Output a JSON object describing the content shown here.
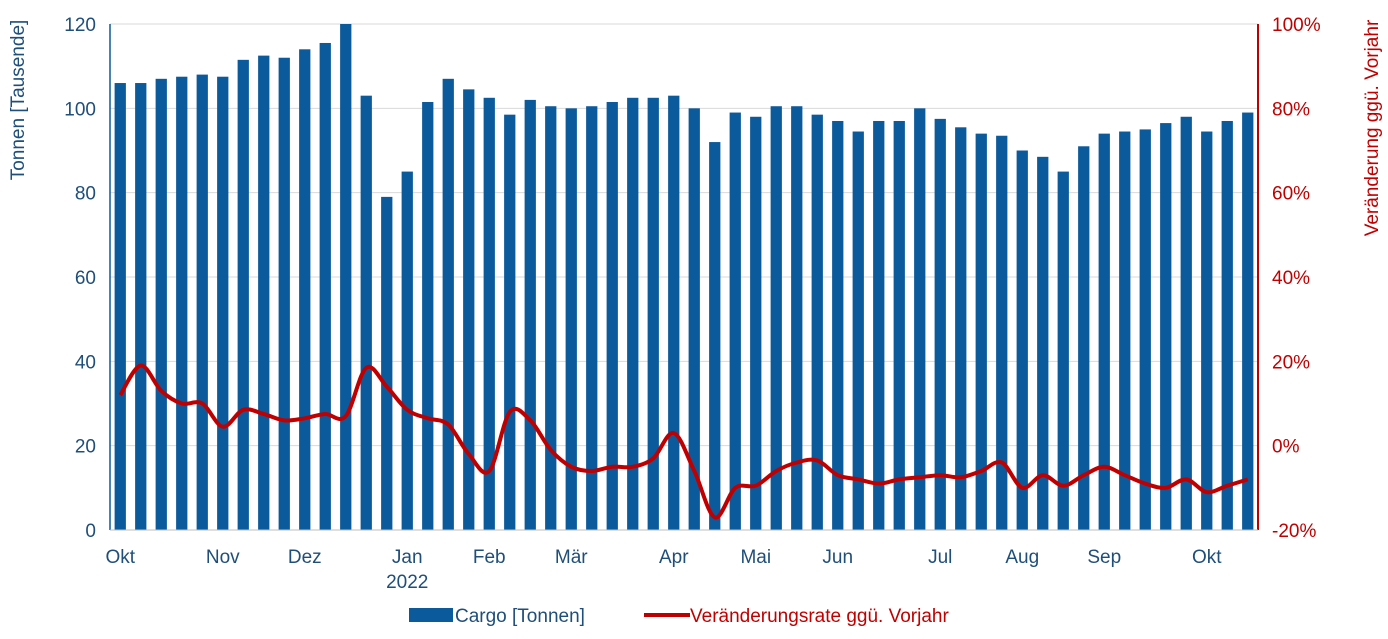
{
  "chart_data": {
    "type": "bar",
    "colors": {
      "bars": "#0b5a9c",
      "line": "#c00000",
      "grid": "#d9d9d9",
      "left_axis": "#1f4e79",
      "right_axis": "#c00000"
    },
    "ylabel_left": "Tonnen [Tausende]",
    "ylabel_right": "Veränderung ggü. Vorjahr",
    "ylim_left": [
      0,
      120
    ],
    "ylim_right": [
      -20,
      100
    ],
    "yticks_left": [
      "0",
      "20",
      "40",
      "60",
      "80",
      "100",
      "120"
    ],
    "yticks_right": [
      "-20%",
      "0%",
      "20%",
      "40%",
      "60%",
      "80%",
      "100%"
    ],
    "x_labels": [
      {
        "index": 0,
        "text": "Okt"
      },
      {
        "index": 5,
        "text": "Nov"
      },
      {
        "index": 9,
        "text": "Dez"
      },
      {
        "index": 14,
        "text": "Jan",
        "sub": "2022"
      },
      {
        "index": 18,
        "text": "Feb"
      },
      {
        "index": 22,
        "text": "Mär"
      },
      {
        "index": 27,
        "text": "Apr"
      },
      {
        "index": 31,
        "text": "Mai"
      },
      {
        "index": 35,
        "text": "Jun"
      },
      {
        "index": 40,
        "text": "Jul"
      },
      {
        "index": 44,
        "text": "Aug"
      },
      {
        "index": 48,
        "text": "Sep"
      },
      {
        "index": 53,
        "text": "Okt"
      }
    ],
    "series": [
      {
        "name": "Cargo [Tonnen]",
        "type": "bar",
        "axis": "left",
        "values": [
          106,
          106,
          107,
          107.5,
          108,
          107.5,
          111.5,
          112.5,
          112,
          114,
          115.5,
          120,
          103,
          79,
          85,
          101.5,
          107,
          104.5,
          102.5,
          98.5,
          102,
          100.5,
          100,
          100.5,
          101.5,
          102.5,
          102.5,
          103,
          100,
          92,
          99,
          98,
          100.5,
          100.5,
          98.5,
          97,
          94.5,
          97,
          97,
          100,
          97.5,
          95.5,
          94,
          93.5,
          90,
          88.5,
          85,
          91,
          94,
          94.5,
          95,
          96.5,
          98,
          94.5,
          97,
          99
        ]
      },
      {
        "name": "Veränderungsrate ggü. Vorjahr",
        "type": "line",
        "axis": "right",
        "values": [
          12,
          19,
          13,
          10,
          10,
          4.5,
          8.5,
          7.5,
          6,
          6.5,
          7.5,
          7,
          18.5,
          14,
          8.5,
          6.5,
          5,
          -2,
          -6,
          8,
          6,
          -1,
          -5,
          -6,
          -5,
          -5,
          -3,
          3,
          -6,
          -17,
          -10,
          -9.5,
          -6,
          -4,
          -3.5,
          -7,
          -8,
          -9,
          -8,
          -7.5,
          -7,
          -7.5,
          -6,
          -4,
          -10,
          -7,
          -9.5,
          -7,
          -5,
          -7,
          -9,
          -10,
          -8,
          -11,
          -9.5,
          -8
        ]
      }
    ]
  }
}
